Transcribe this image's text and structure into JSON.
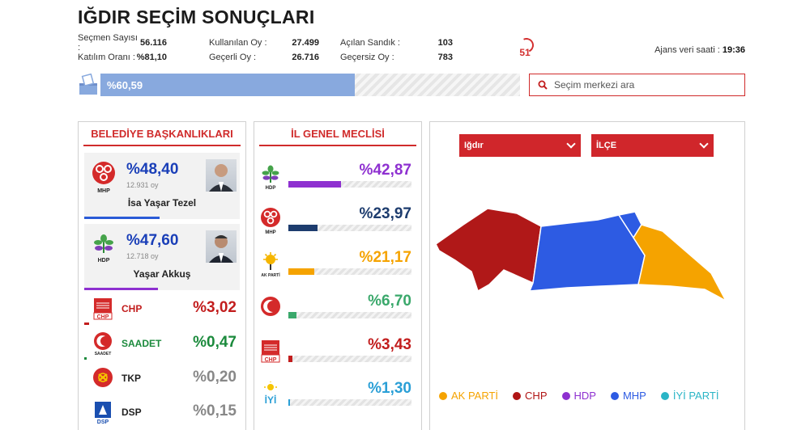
{
  "title": "IĞDIR SEÇİM SONUÇLARI",
  "stats": {
    "col1": [
      {
        "label": "Seçmen Sayısı :",
        "value": "56.116"
      },
      {
        "label": "Katılım Oranı :",
        "value": "%81,10"
      }
    ],
    "col2": [
      {
        "label": "Kullanılan Oy :",
        "value": "27.499"
      },
      {
        "label": "Geçerli Oy :",
        "value": "26.716"
      }
    ],
    "col3": [
      {
        "label": "Açılan Sandık :",
        "value": "103"
      },
      {
        "label": "Geçersiz Oy :",
        "value": "783"
      }
    ]
  },
  "open_count": "51",
  "agency": {
    "label": "Ajans veri saati :",
    "time": "19:36"
  },
  "progress": {
    "label": "%60,59",
    "fraction": 0.6059
  },
  "search": {
    "placeholder": "Seçim merkezi ara"
  },
  "belediye": {
    "title": "BELEDİYE BAŞKANLIKLARI",
    "candidates": [
      {
        "party": "MHP",
        "pct": "%48,40",
        "votes": "12.931 oy",
        "name": "İsa Yaşar Tezel",
        "color": "#2a5bd7",
        "fraction": 0.484
      },
      {
        "party": "HDP",
        "pct": "%47,60",
        "votes": "12.718 oy",
        "name": "Yaşar Akkuş",
        "color": "#8e30d0",
        "fraction": 0.476
      }
    ],
    "others": [
      {
        "party": "CHP",
        "pct": "%3,02",
        "color": "#c21d1d",
        "fraction": 0.0302
      },
      {
        "party": "SAADET",
        "pct": "%0,47",
        "color": "#1b8a3c",
        "fraction": 0.0047
      },
      {
        "party": "TKP",
        "pct": "%0,20",
        "color": "#888888",
        "fraction": 0.002
      },
      {
        "party": "DSP",
        "pct": "%0,15",
        "color": "#888888",
        "fraction": 0.0015
      }
    ]
  },
  "meclis": {
    "title": "İL GENEL MECLİSİ",
    "rows": [
      {
        "party": "HDP",
        "pct": "%42,87",
        "color": "#8e30d0",
        "fraction": 0.4287
      },
      {
        "party": "MHP",
        "pct": "%23,97",
        "color": "#1d3c6e",
        "fraction": 0.2397
      },
      {
        "party": "AK PARTİ",
        "pct": "%21,17",
        "color": "#f5a300",
        "fraction": 0.2117
      },
      {
        "party": "SAADET",
        "pct": "%6,70",
        "color": "#3aa86b",
        "fraction": 0.067
      },
      {
        "party": "CHP",
        "pct": "%3,43",
        "color": "#c21d1d",
        "fraction": 0.0343
      },
      {
        "party": "İYİ",
        "pct": "%1,30",
        "color": "#2a9fd6",
        "fraction": 0.013
      }
    ]
  },
  "map": {
    "select_il": "Iğdır",
    "select_ilce": "İLÇE",
    "legend": [
      {
        "label": "AK PARTİ",
        "color": "#f5a300"
      },
      {
        "label": "CHP",
        "color": "#b01515"
      },
      {
        "label": "HDP",
        "color": "#8e30d0"
      },
      {
        "label": "MHP",
        "color": "#2d5be3"
      },
      {
        "label": "İYİ PARTİ",
        "color": "#2ab5c6"
      }
    ]
  }
}
